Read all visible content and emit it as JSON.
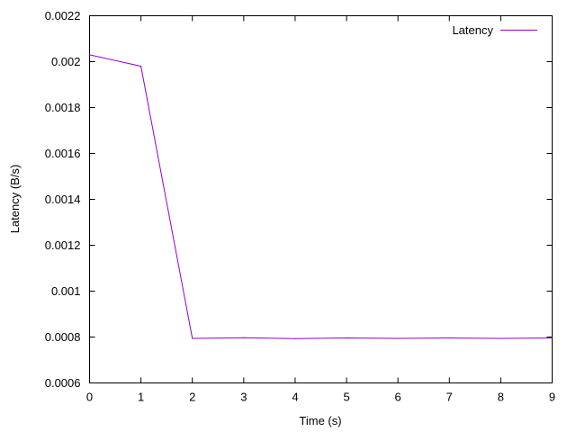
{
  "chart_data": {
    "type": "line",
    "title": "",
    "xlabel": "Time (s)",
    "ylabel": "Latency (B/s)",
    "xlim": [
      0,
      9
    ],
    "ylim": [
      0.0006,
      0.0022
    ],
    "xticks": [
      "0",
      "1",
      "2",
      "3",
      "4",
      "5",
      "6",
      "7",
      "8",
      "9"
    ],
    "yticks": [
      "0.0006",
      "0.0008",
      "0.001",
      "0.0012",
      "0.0014",
      "0.0016",
      "0.0018",
      "0.002",
      "0.0022"
    ],
    "grid": false,
    "legend_position": "top-right",
    "series": [
      {
        "name": "Latency",
        "color": "#9400d3",
        "x": [
          0,
          1,
          2,
          3,
          4,
          5,
          6,
          7,
          8,
          9
        ],
        "y": [
          0.00203,
          0.00198,
          0.000794,
          0.000797,
          0.000793,
          0.000796,
          0.000794,
          0.000796,
          0.000794,
          0.000796
        ]
      }
    ]
  }
}
